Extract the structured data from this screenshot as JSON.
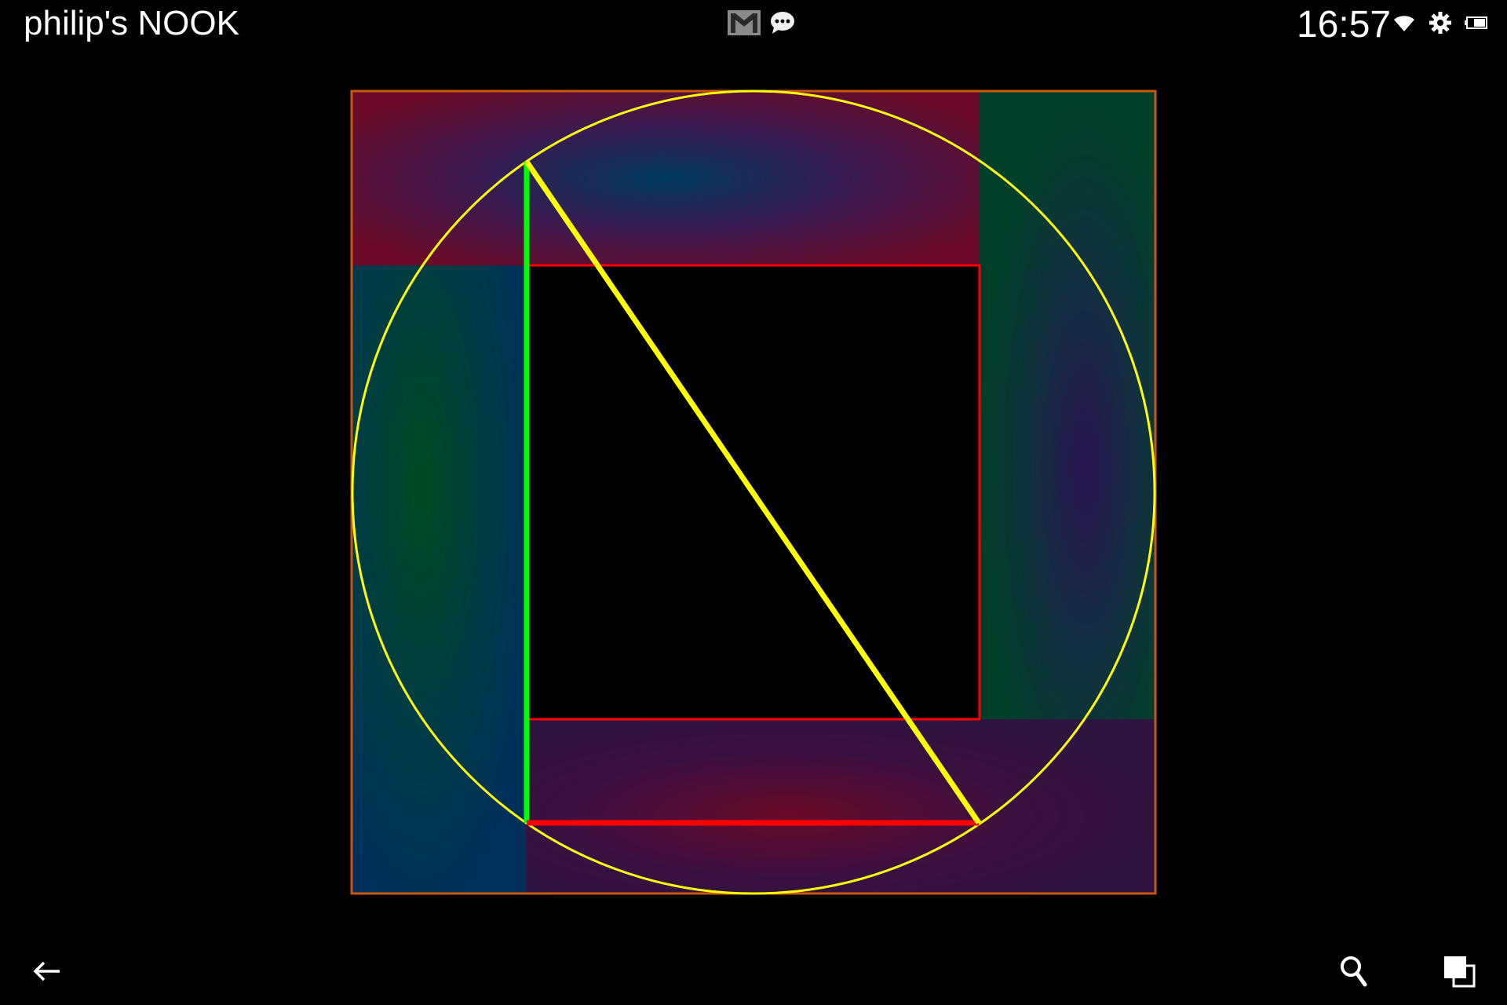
{
  "status_bar": {
    "device_name": "philip's NOOK",
    "time": "16:57",
    "notifications": [
      "gmail-icon",
      "chat-bubble-icon"
    ],
    "indicators": [
      "wifi-icon",
      "settings-gear-icon",
      "battery-icon"
    ]
  },
  "figure": {
    "colors": {
      "outer_border": "#c85a10",
      "circle": "#ffff00",
      "inner_square": "#ff0000",
      "vertical_line": "#00ff00",
      "diagonal_line": "#ffff00",
      "bottom_line": "#ff0000",
      "top_band": "#6a0a28",
      "left_band": "#003a5a",
      "right_band": "#004028",
      "bottom_band": "#3a1040"
    }
  },
  "nav_bar": {
    "buttons": [
      "back-arrow-icon",
      "search-icon",
      "recent-apps-icon"
    ]
  }
}
